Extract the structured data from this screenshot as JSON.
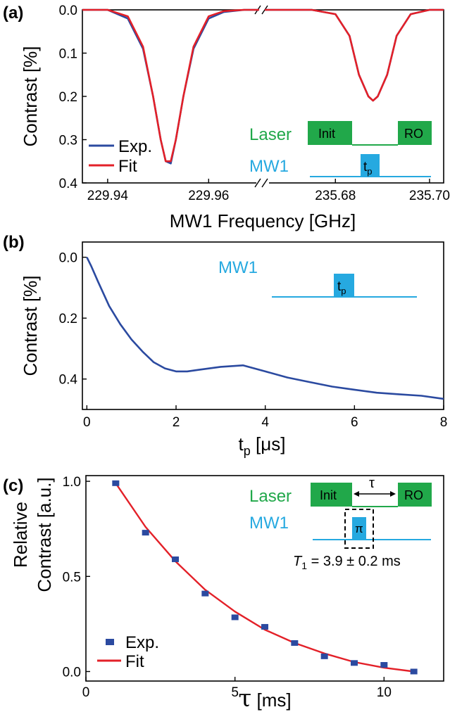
{
  "colors": {
    "exp": "#2b4aa0",
    "fit": "#e32028",
    "laser": "#21a84a",
    "mw": "#26a9e0",
    "axis": "#000000"
  },
  "chart_data": [
    {
      "panel": "(a)",
      "type": "line",
      "xlabel": "MW1 Frequency [GHz]",
      "ylabel": "Contrast [%]",
      "ylim": [
        0.4,
        0.0
      ],
      "y_ticks": [
        "0.0",
        "0.1",
        "0.2",
        "0.3",
        "0.4"
      ],
      "x_segments": [
        {
          "xlim": [
            229.935,
            229.97
          ],
          "ticks": [
            "229.94",
            "229.96"
          ]
        },
        {
          "xlim": [
            235.665,
            235.703
          ],
          "ticks": [
            "235.68",
            "235.70"
          ]
        }
      ],
      "legend": {
        "position": "bottom-left",
        "entries": [
          "Exp.",
          "Fit"
        ]
      },
      "series": [
        {
          "name": "Exp.",
          "segment": 0,
          "x": [
            229.935,
            229.94,
            229.944,
            229.947,
            229.949,
            229.9505,
            229.9515,
            229.9525,
            229.9535,
            229.955,
            229.957,
            229.96,
            229.963,
            229.967,
            229.97
          ],
          "y": [
            0.0,
            0.0,
            0.02,
            0.09,
            0.2,
            0.3,
            0.35,
            0.355,
            0.3,
            0.2,
            0.09,
            0.02,
            0.005,
            0.0,
            0.0
          ]
        },
        {
          "name": "Fit",
          "segment": 0,
          "x": [
            229.935,
            229.94,
            229.944,
            229.947,
            229.949,
            229.9505,
            229.9515,
            229.9525,
            229.9535,
            229.955,
            229.957,
            229.96,
            229.963,
            229.967,
            229.97
          ],
          "y": [
            0.0,
            0.0,
            0.015,
            0.085,
            0.2,
            0.3,
            0.35,
            0.35,
            0.3,
            0.2,
            0.085,
            0.015,
            0.003,
            0.0,
            0.0
          ]
        },
        {
          "name": "Exp.",
          "segment": 1,
          "x": [
            235.665,
            235.675,
            235.68,
            235.683,
            235.685,
            235.687,
            235.688,
            235.689,
            235.691,
            235.693,
            235.696,
            235.7,
            235.703
          ],
          "y": [
            0.0,
            0.0,
            0.01,
            0.06,
            0.15,
            0.2,
            0.21,
            0.2,
            0.15,
            0.06,
            0.01,
            0.0,
            0.0
          ]
        },
        {
          "name": "Fit",
          "segment": 1,
          "x": [
            235.665,
            235.675,
            235.68,
            235.683,
            235.685,
            235.687,
            235.688,
            235.689,
            235.691,
            235.693,
            235.696,
            235.7,
            235.703
          ],
          "y": [
            0.0,
            0.0,
            0.01,
            0.06,
            0.15,
            0.2,
            0.21,
            0.2,
            0.15,
            0.06,
            0.01,
            0.0,
            0.0
          ]
        }
      ],
      "inset": {
        "laser_label": "Laser",
        "init_label": "Init",
        "ro_label": "RO",
        "mw_label": "MW1",
        "pulse_label": "t",
        "pulse_sub": "p"
      }
    },
    {
      "panel": "(b)",
      "type": "line",
      "xlabel": "t",
      "xlabel_sub": "p",
      "xlabel_unit": "[μs]",
      "ylabel": "Contrast [%]",
      "xlim": [
        -0.1,
        8.0
      ],
      "ylim": [
        0.5,
        -0.05
      ],
      "x_ticks": [
        "0",
        "2",
        "4",
        "6",
        "8"
      ],
      "y_ticks": [
        "0.0",
        "0.2",
        "0.4"
      ],
      "series": [
        {
          "x": [
            0.0,
            0.1,
            0.25,
            0.5,
            0.75,
            1.0,
            1.25,
            1.5,
            1.75,
            2.0,
            2.25,
            2.5,
            3.0,
            3.5,
            4.0,
            4.5,
            5.0,
            5.5,
            6.0,
            6.5,
            7.0,
            7.5,
            8.0
          ],
          "y": [
            0.0,
            0.03,
            0.08,
            0.16,
            0.22,
            0.27,
            0.31,
            0.345,
            0.365,
            0.375,
            0.375,
            0.37,
            0.36,
            0.355,
            0.375,
            0.395,
            0.41,
            0.425,
            0.435,
            0.445,
            0.45,
            0.455,
            0.465
          ]
        }
      ],
      "inset": {
        "mw_label": "MW1",
        "pulse_label": "t",
        "pulse_sub": "p"
      }
    },
    {
      "panel": "(c)",
      "type": "scatter",
      "xlabel": "τ",
      "xlabel_unit": "[ms]",
      "ylabel_line1": "Relative",
      "ylabel_line2": "Contrast [a.u.]",
      "xlim": [
        0,
        12
      ],
      "ylim": [
        -0.05,
        1.03
      ],
      "x_ticks": [
        "0",
        "5",
        "10"
      ],
      "y_ticks": [
        "0.0",
        "0.5",
        "1.0"
      ],
      "legend": {
        "position": "bottom-left",
        "entries": [
          "Exp.",
          "Fit"
        ]
      },
      "series": [
        {
          "name": "Exp.",
          "x": [
            1,
            2,
            3,
            4,
            5,
            6,
            7,
            8,
            9,
            10,
            11
          ],
          "y": [
            0.99,
            0.73,
            0.59,
            0.41,
            0.285,
            0.235,
            0.15,
            0.08,
            0.045,
            0.035,
            0.0
          ]
        },
        {
          "name": "Fit",
          "x": [
            1,
            2,
            3,
            4,
            5,
            6,
            7,
            8,
            9,
            10,
            11
          ],
          "y": [
            0.99,
            0.76,
            0.58,
            0.43,
            0.315,
            0.22,
            0.15,
            0.095,
            0.05,
            0.02,
            0.0
          ]
        }
      ],
      "inset": {
        "laser_label": "Laser",
        "init_label": "Init",
        "ro_label": "RO",
        "tau_label": "τ",
        "mw_label": "MW1",
        "pi_label": "π",
        "t1_text": "= 3.9 ± 0.2 ms",
        "t1_symbol": "T",
        "t1_sub": "1"
      }
    }
  ]
}
